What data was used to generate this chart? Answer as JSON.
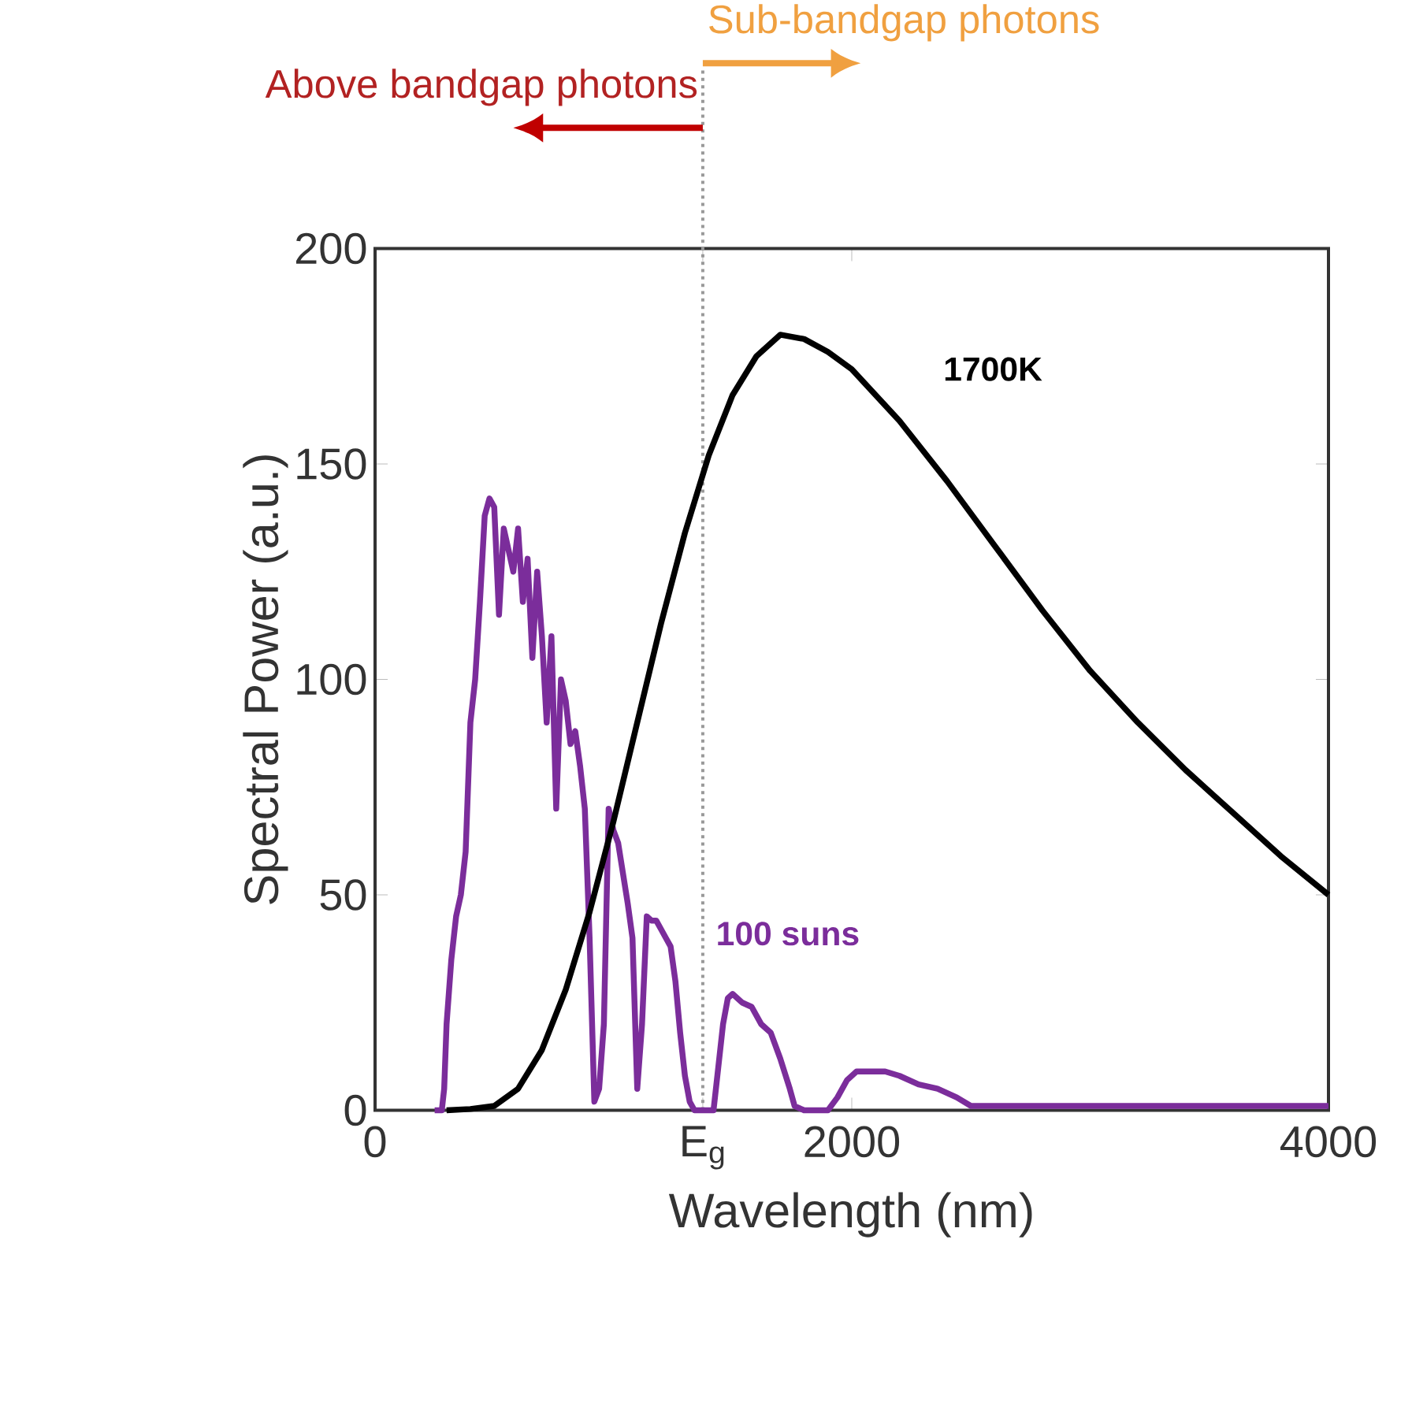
{
  "chart_data": {
    "type": "line",
    "xlabel": "Wavelength (nm)",
    "ylabel": "Spectral Power (a.u.)",
    "xlim": [
      0,
      4000
    ],
    "ylim": [
      0,
      200
    ],
    "xticks": [
      0,
      {
        "value": 1375,
        "label": "E$_{g}$"
      },
      2000,
      4000
    ],
    "yticks": [
      0,
      50,
      100,
      150,
      200
    ],
    "grid": false,
    "marker": "none",
    "line_style": "solid",
    "series": [
      {
        "color": "#7b2d9b",
        "x": [
          250,
          280,
          290,
          300,
          320,
          340,
          360,
          380,
          400,
          420,
          440,
          460,
          480,
          500,
          520,
          540,
          560,
          580,
          600,
          620,
          640,
          660,
          680,
          700,
          720,
          740,
          760,
          780,
          800,
          820,
          840,
          860,
          880,
          900,
          920,
          940,
          960,
          980,
          1000,
          1020,
          1040,
          1060,
          1080,
          1100,
          1120,
          1140,
          1160,
          1180,
          1200,
          1220,
          1240,
          1260,
          1280,
          1300,
          1320,
          1340,
          1380,
          1420,
          1440,
          1460,
          1480,
          1500,
          1540,
          1580,
          1620,
          1660,
          1700,
          1740,
          1760,
          1800,
          1860,
          1900,
          1940,
          1980,
          2020,
          2080,
          2140,
          2200,
          2280,
          2360,
          2440,
          2500,
          2600,
          3000,
          3500,
          4000
        ],
        "values": [
          0,
          0,
          5,
          20,
          35,
          45,
          50,
          60,
          90,
          100,
          118,
          138,
          142,
          140,
          115,
          135,
          130,
          125,
          135,
          118,
          128,
          105,
          125,
          110,
          90,
          110,
          70,
          100,
          95,
          85,
          88,
          80,
          70,
          40,
          2,
          5,
          20,
          70,
          65,
          62,
          55,
          48,
          40,
          5,
          20,
          45,
          44,
          44,
          42,
          40,
          38,
          30,
          18,
          8,
          2,
          0,
          0,
          0,
          10,
          20,
          26,
          27,
          25,
          24,
          20,
          18,
          12,
          5,
          1,
          0,
          0,
          0,
          3,
          7,
          9,
          9,
          9,
          8,
          6,
          5,
          3,
          1,
          1,
          1,
          1,
          1
        ]
      },
      {
        "color": "#000000",
        "x": [
          300,
          400,
          500,
          600,
          700,
          800,
          900,
          1000,
          1100,
          1200,
          1300,
          1400,
          1500,
          1600,
          1700,
          1800,
          1900,
          2000,
          2200,
          2400,
          2600,
          2800,
          3000,
          3200,
          3400,
          3600,
          3800,
          4000
        ],
        "values": [
          0,
          0.3,
          1,
          5,
          14,
          28,
          46,
          67,
          90,
          113,
          134,
          152,
          166,
          175,
          180,
          179,
          176,
          172,
          160,
          146,
          131,
          116,
          102,
          90,
          79,
          69,
          59,
          50
        ]
      }
    ],
    "ref_lines": [
      {
        "axis": "x",
        "value": 1375,
        "color": "#999999",
        "line_style": "dotted"
      }
    ],
    "annotations": [
      "Above bandgap photons",
      "Sub-bandgap photons",
      "100 suns",
      "1700K"
    ]
  }
}
